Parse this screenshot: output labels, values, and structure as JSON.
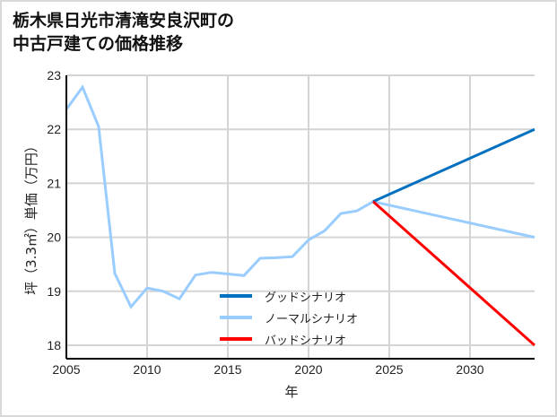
{
  "title_lines": [
    "栃木県日光市清滝安良沢町の",
    "中古戸建ての価格推移"
  ],
  "chart_data": {
    "type": "line",
    "title": "栃木県日光市清滝安良沢町の中古戸建ての価格推移",
    "xlabel": "年",
    "ylabel": "坪（3.3㎡）単価（万円）",
    "xlim": [
      2005,
      2034
    ],
    "ylim": [
      17.75,
      23
    ],
    "xticks": [
      2005,
      2010,
      2015,
      2020,
      2025,
      2030
    ],
    "yticks": [
      18,
      19,
      20,
      21,
      22,
      23
    ],
    "grid": true,
    "legend_position": "lower center inside plot",
    "series": [
      {
        "name": "ノーマルシナリオ",
        "color": "#99ccff",
        "x": [
          2005,
          2006,
          2007,
          2008,
          2009,
          2010,
          2011,
          2012,
          2013,
          2014,
          2015,
          2016,
          2017,
          2018,
          2019,
          2020,
          2021,
          2022,
          2023,
          2024,
          2034
        ],
        "values": [
          22.37,
          22.78,
          22.05,
          19.33,
          18.71,
          19.06,
          19.0,
          18.86,
          19.3,
          19.35,
          19.32,
          19.29,
          19.61,
          19.62,
          19.64,
          19.95,
          20.12,
          20.44,
          20.49,
          20.66,
          20.0
        ]
      },
      {
        "name": "グッドシナリオ",
        "color": "#0070c0",
        "x": [
          2024,
          2034
        ],
        "values": [
          20.66,
          22.0
        ]
      },
      {
        "name": "バッドシナリオ",
        "color": "#ff0000",
        "x": [
          2024,
          2034
        ],
        "values": [
          20.66,
          18.0
        ]
      }
    ]
  },
  "legend": [
    {
      "label": "グッドシナリオ",
      "color": "#0070c0"
    },
    {
      "label": "ノーマルシナリオ",
      "color": "#99ccff"
    },
    {
      "label": "バッドシナリオ",
      "color": "#ff0000"
    }
  ]
}
